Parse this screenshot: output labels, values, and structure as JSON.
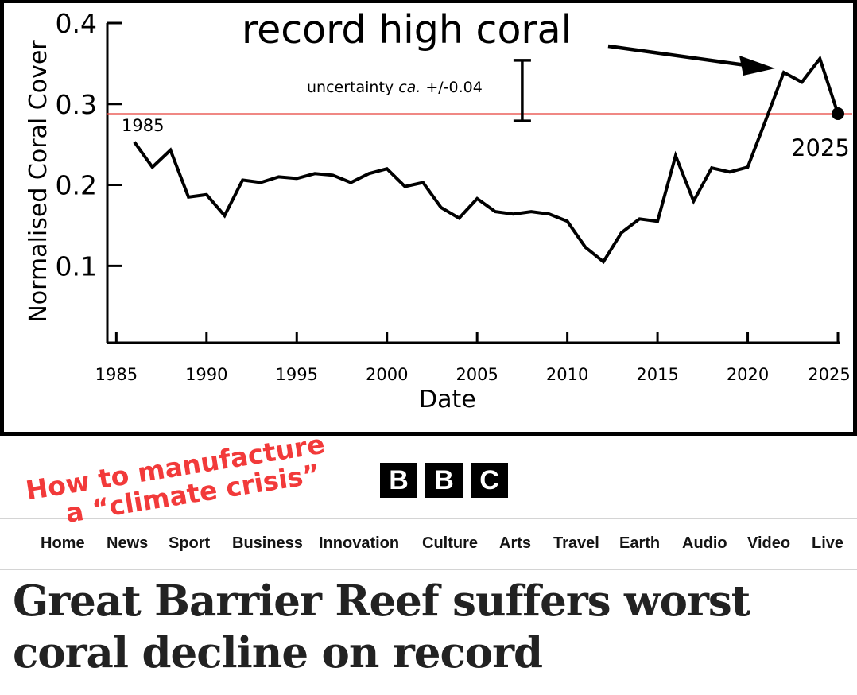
{
  "chart_data": {
    "type": "line",
    "ylabel": "Normalised Coral Cover",
    "xlabel": "Date",
    "xlim": [
      1984.5,
      2025
    ],
    "ylim": [
      0.005,
      0.4
    ],
    "x_ticks": [
      1985,
      1990,
      1995,
      2000,
      2005,
      2010,
      2015,
      2020,
      2025
    ],
    "y_ticks": [
      0.1,
      0.2,
      0.3,
      0.4
    ],
    "y_tick_labels": [
      "0.1",
      "0.2",
      "0.3",
      "0.4"
    ],
    "series": [
      {
        "x": [
          1986,
          1987,
          1988,
          1989,
          1990,
          1991,
          1992,
          1993,
          1994,
          1995,
          1996,
          1997,
          1998,
          1999,
          2000,
          2001,
          2002,
          2003,
          2004,
          2005,
          2006,
          2007,
          2008,
          2009,
          2010,
          2011,
          2012,
          2013,
          2014,
          2015,
          2016,
          2017,
          2018,
          2019,
          2020,
          2021,
          2022,
          2023,
          2024,
          2025
        ],
        "y": [
          0.253,
          0.222,
          0.243,
          0.185,
          0.188,
          0.162,
          0.206,
          0.203,
          0.21,
          0.208,
          0.214,
          0.212,
          0.203,
          0.214,
          0.22,
          0.198,
          0.203,
          0.172,
          0.159,
          0.183,
          0.167,
          0.164,
          0.167,
          0.164,
          0.155,
          0.123,
          0.105,
          0.141,
          0.158,
          0.155,
          0.236,
          0.18,
          0.221,
          0.216,
          0.222,
          0.28,
          0.339,
          0.327,
          0.356,
          0.288
        ]
      }
    ],
    "reference_line": {
      "y": 0.288,
      "color": "#e8413a"
    },
    "uncertainty_bar": {
      "x": 2007.5,
      "y_low": 0.279,
      "y_high": 0.354
    },
    "annotations": {
      "record_high": "record high coral",
      "uncertainty_text": "uncertainty ",
      "uncertainty_italic": "ca.",
      "uncertainty_value": " +/-0.04",
      "start_label": "1985",
      "end_label": "2025"
    }
  },
  "logo": {
    "letters": [
      "B",
      "B",
      "C"
    ]
  },
  "nav": {
    "items": [
      "Home",
      "News",
      "Sport",
      "Business",
      "Innovation",
      "Culture",
      "Arts",
      "Travel",
      "Earth",
      "Audio",
      "Video",
      "Live"
    ]
  },
  "headline": "Great Barrier Reef suffers worst coral decline on record",
  "overlay": {
    "line1": "How to manufacture",
    "line2": "a “climate crisis”",
    "color": "#f23a3a"
  }
}
